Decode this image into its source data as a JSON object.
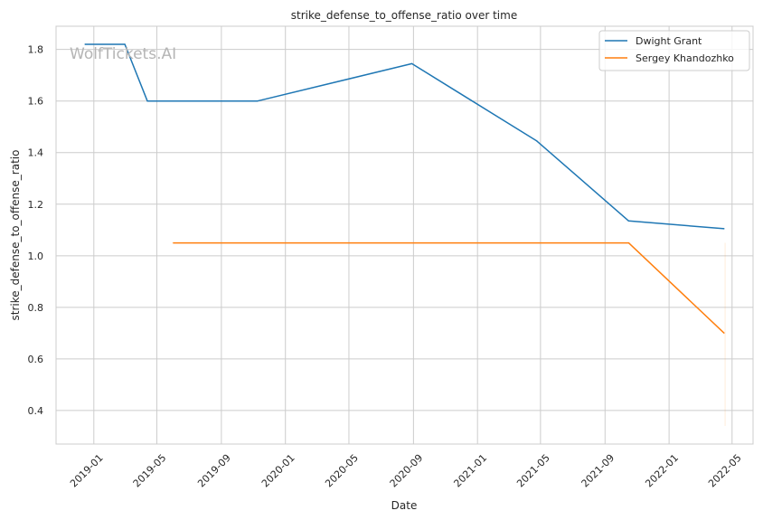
{
  "chart_data": {
    "type": "line",
    "title": "strike_defense_to_offense_ratio over time",
    "xlabel": "Date",
    "ylabel": "strike_defense_to_offense_ratio",
    "watermark": "WolfTickets.AI",
    "x_ticks": [
      "2019-01",
      "2019-05",
      "2019-09",
      "2020-01",
      "2020-05",
      "2020-09",
      "2021-01",
      "2021-05",
      "2021-09",
      "2022-01",
      "2022-05"
    ],
    "y_ticks": [
      "0.4",
      "0.6",
      "0.8",
      "1.0",
      "1.2",
      "1.4",
      "1.6",
      "1.8"
    ],
    "xlim": [
      "2018-10-21",
      "2022-06-10"
    ],
    "ylim": [
      0.27,
      1.89
    ],
    "grid": true,
    "legend_position": "top-right",
    "series": [
      {
        "name": "Dwight Grant",
        "color": "#1f77b4",
        "points": [
          {
            "x": "2018-12-15",
            "y": 1.82
          },
          {
            "x": "2019-03-01",
            "y": 1.82
          },
          {
            "x": "2019-04-13",
            "y": 1.6
          },
          {
            "x": "2019-11-09",
            "y": 1.6
          },
          {
            "x": "2020-08-29",
            "y": 1.745
          },
          {
            "x": "2021-04-24",
            "y": 1.445
          },
          {
            "x": "2021-10-16",
            "y": 1.135
          },
          {
            "x": "2022-04-16",
            "y": 1.105
          }
        ]
      },
      {
        "name": "Sergey Khandozhko",
        "color": "#ff7f0e",
        "points": [
          {
            "x": "2019-06-01",
            "y": 1.05
          },
          {
            "x": "2021-10-16",
            "y": 1.05
          },
          {
            "x": "2022-04-16",
            "y": 0.7
          }
        ]
      }
    ]
  }
}
